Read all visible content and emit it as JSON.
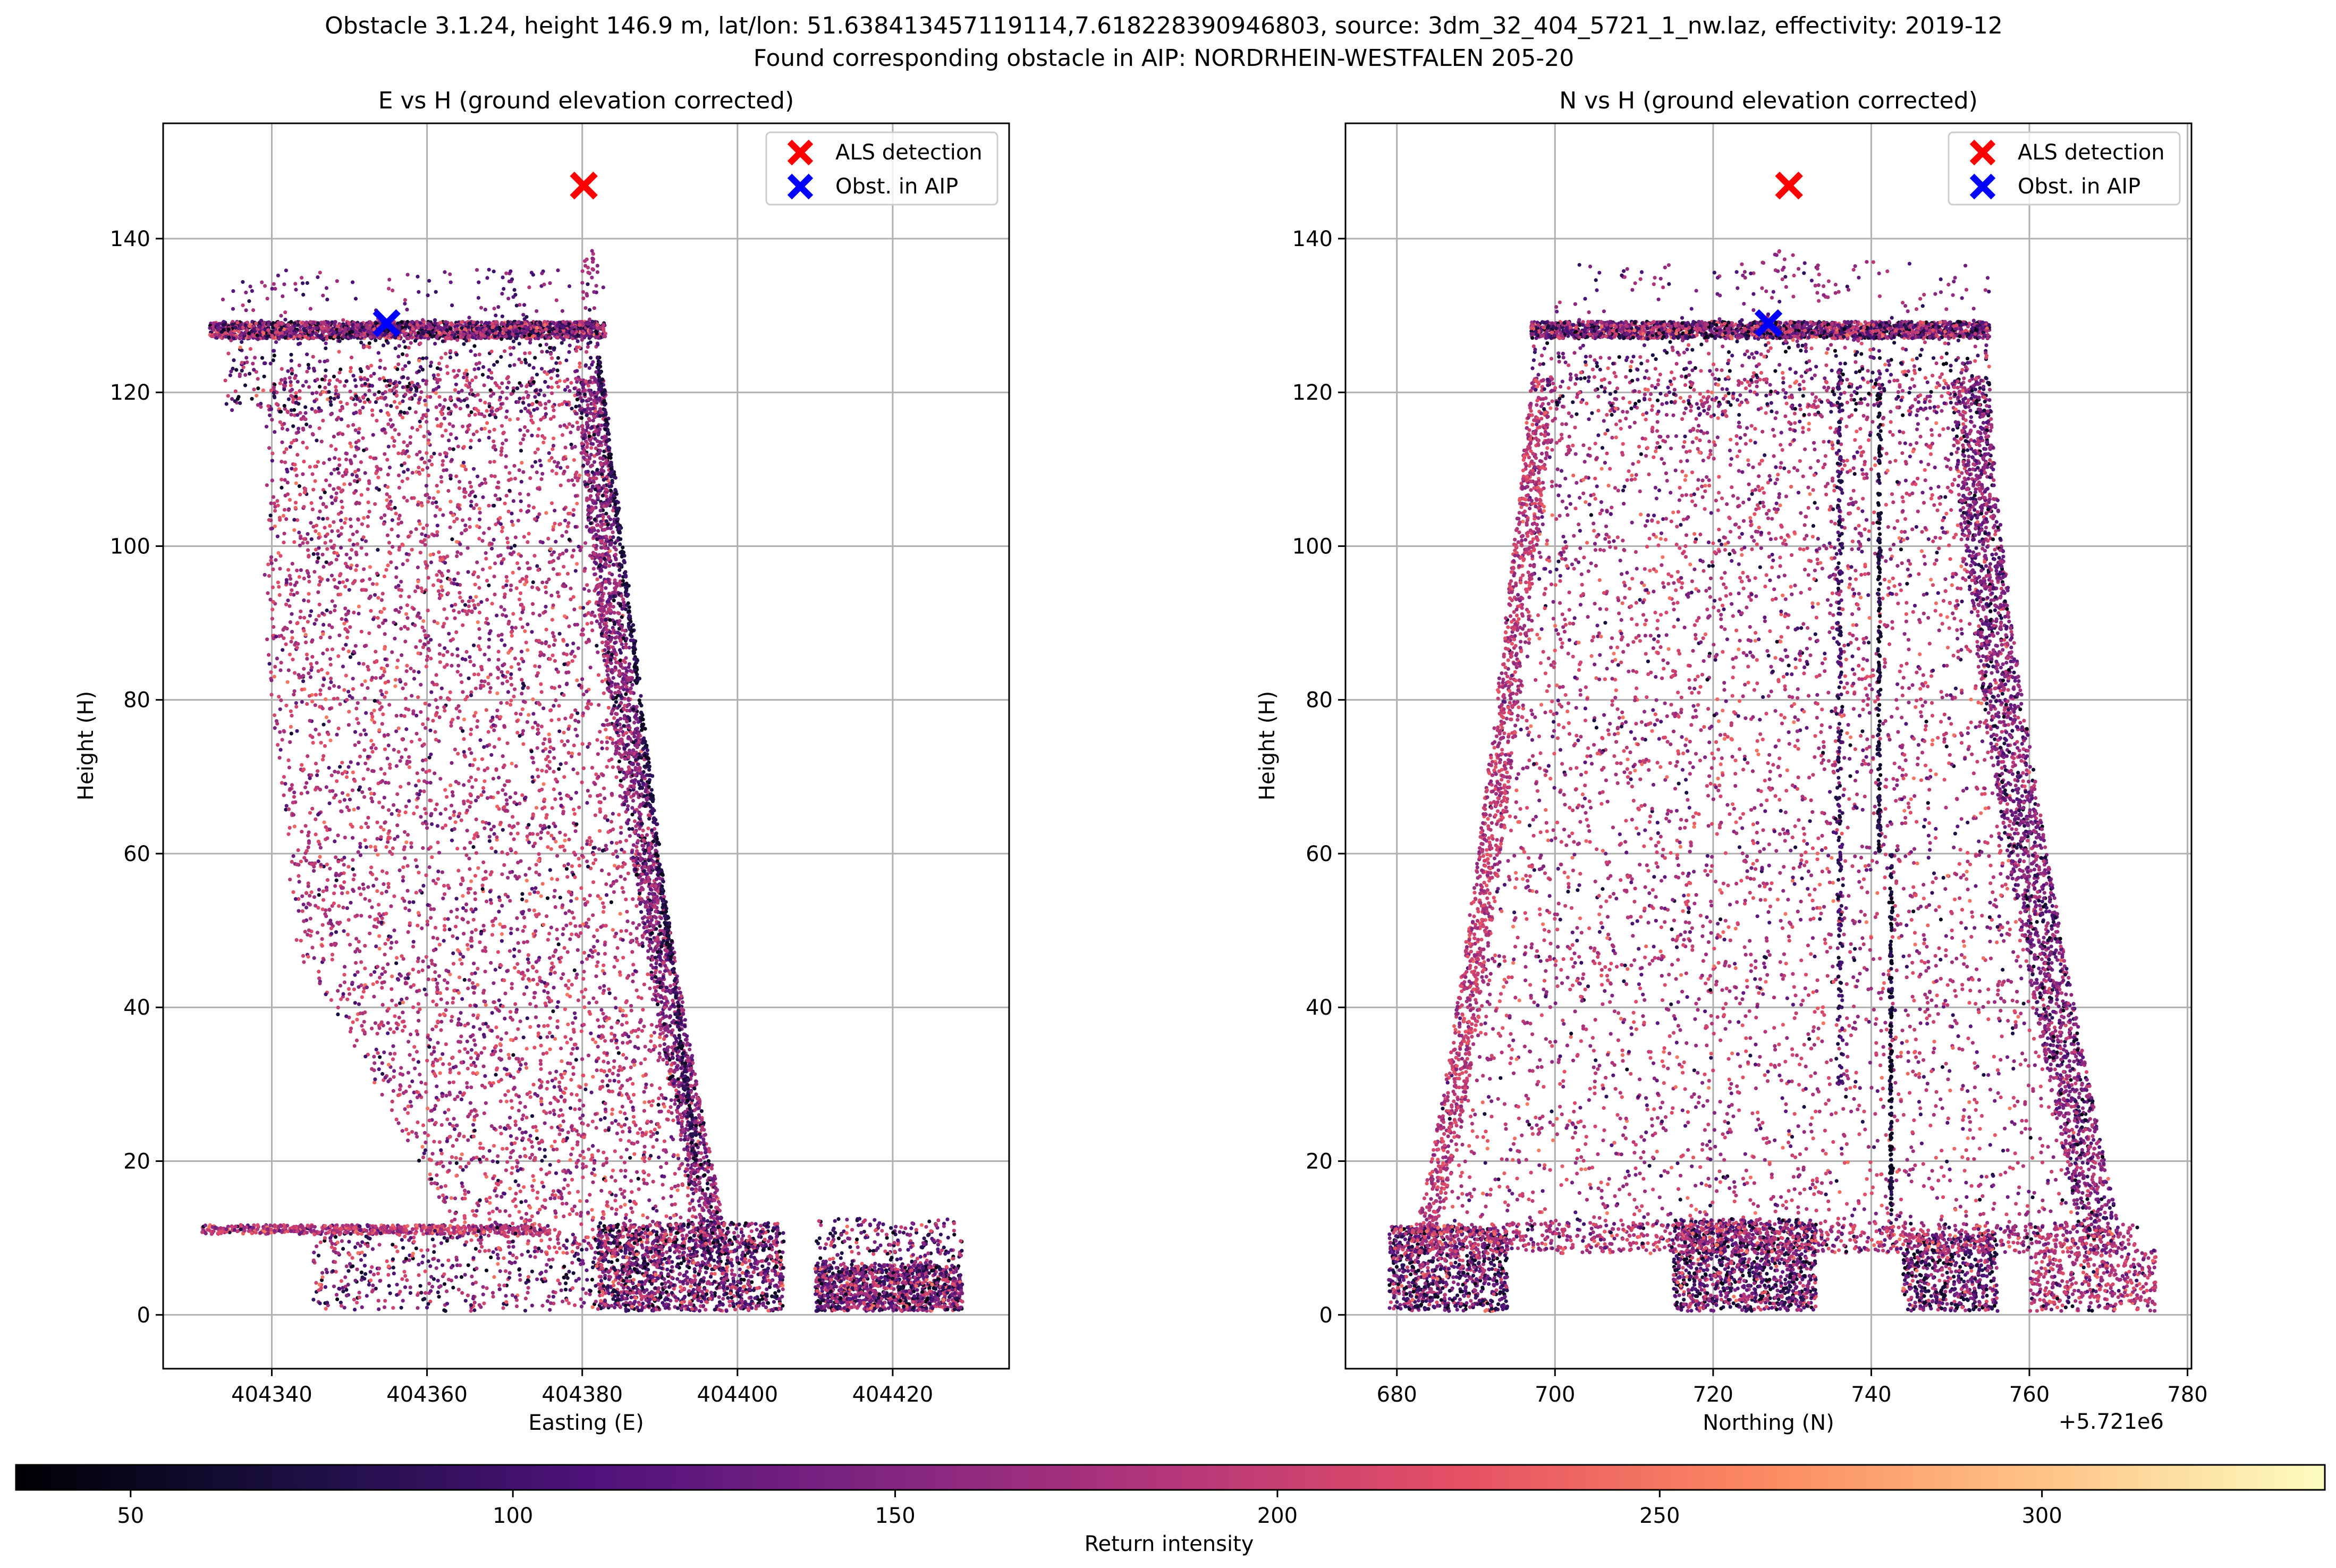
{
  "figure": {
    "title_line1": "Obstacle 3.1.24, height 146.9 m, lat/lon: 51.638413457119114,7.618228390946803, source: 3dm_32_404_5721_1_nw.laz, effectivity: 2019-12",
    "title_line2": "Found corresponding obstacle in AIP: NORDRHEIN-WESTFALEN 205-20"
  },
  "colorbar": {
    "label": "Return intensity",
    "range": [
      35,
      337
    ],
    "ticks": [
      50,
      100,
      150,
      200,
      250,
      300
    ],
    "colormap": [
      "#000004",
      "#1c1044",
      "#4f127b",
      "#812581",
      "#b5367a",
      "#e55064",
      "#fb8761",
      "#fec287",
      "#fcfdbf"
    ]
  },
  "chart_data": [
    {
      "type": "scatter",
      "title": "E vs H (ground elevation corrected)",
      "xlabel": "Easting (E)",
      "ylabel": "Height (H)",
      "xlim": [
        404326,
        404435
      ],
      "ylim": [
        -7,
        155
      ],
      "xticks": [
        404340,
        404360,
        404380,
        404400,
        404420
      ],
      "yticks": [
        0,
        20,
        40,
        60,
        80,
        100,
        120,
        140
      ],
      "grid": true,
      "legend_position": "top-right",
      "series": [
        {
          "name": "ALS detection",
          "marker": "x",
          "color": "#ff0000",
          "points": [
            [
              404380.2,
              146.9
            ]
          ]
        },
        {
          "name": "Obst. in AIP",
          "marker": "x",
          "color": "#0000ff",
          "points": [
            [
              404354.8,
              129
            ]
          ]
        }
      ],
      "point_cloud": {
        "color_by": "Return intensity",
        "extent_x": [
          404331,
          404430
        ],
        "extent_y": [
          0,
          138.5
        ],
        "roof_height": 128,
        "tower_top_x": [
          404333,
          404383
        ],
        "tower_base_right_x": 404399,
        "ground_blocks_x": [
          [
            404404,
            404406
          ],
          [
            404410,
            404430
          ]
        ]
      }
    },
    {
      "type": "scatter",
      "title": "N vs H (ground elevation corrected)",
      "xlabel": "Northing (N)",
      "ylabel": "Height (H)",
      "offset_label": "+5.721e6",
      "xlim": [
        673.5,
        780.5
      ],
      "ylim": [
        -7,
        155
      ],
      "xticks": [
        680,
        700,
        720,
        740,
        760,
        780
      ],
      "yticks": [
        0,
        20,
        40,
        60,
        80,
        100,
        120,
        140
      ],
      "grid": true,
      "legend_position": "top-right",
      "series": [
        {
          "name": "ALS detection",
          "marker": "x",
          "color": "#ff0000",
          "points": [
            [
              729.6,
              146.9
            ]
          ]
        },
        {
          "name": "Obst. in AIP",
          "marker": "x",
          "color": "#0000ff",
          "points": [
            [
              727,
              129
            ]
          ]
        }
      ],
      "point_cloud": {
        "color_by": "Return intensity",
        "extent_x": [
          679,
          776
        ],
        "extent_y": [
          0,
          138.5
        ],
        "roof_height": 128,
        "tower_top_x": [
          697,
          755
        ],
        "tower_base_x": [
          681,
          772
        ]
      }
    }
  ]
}
